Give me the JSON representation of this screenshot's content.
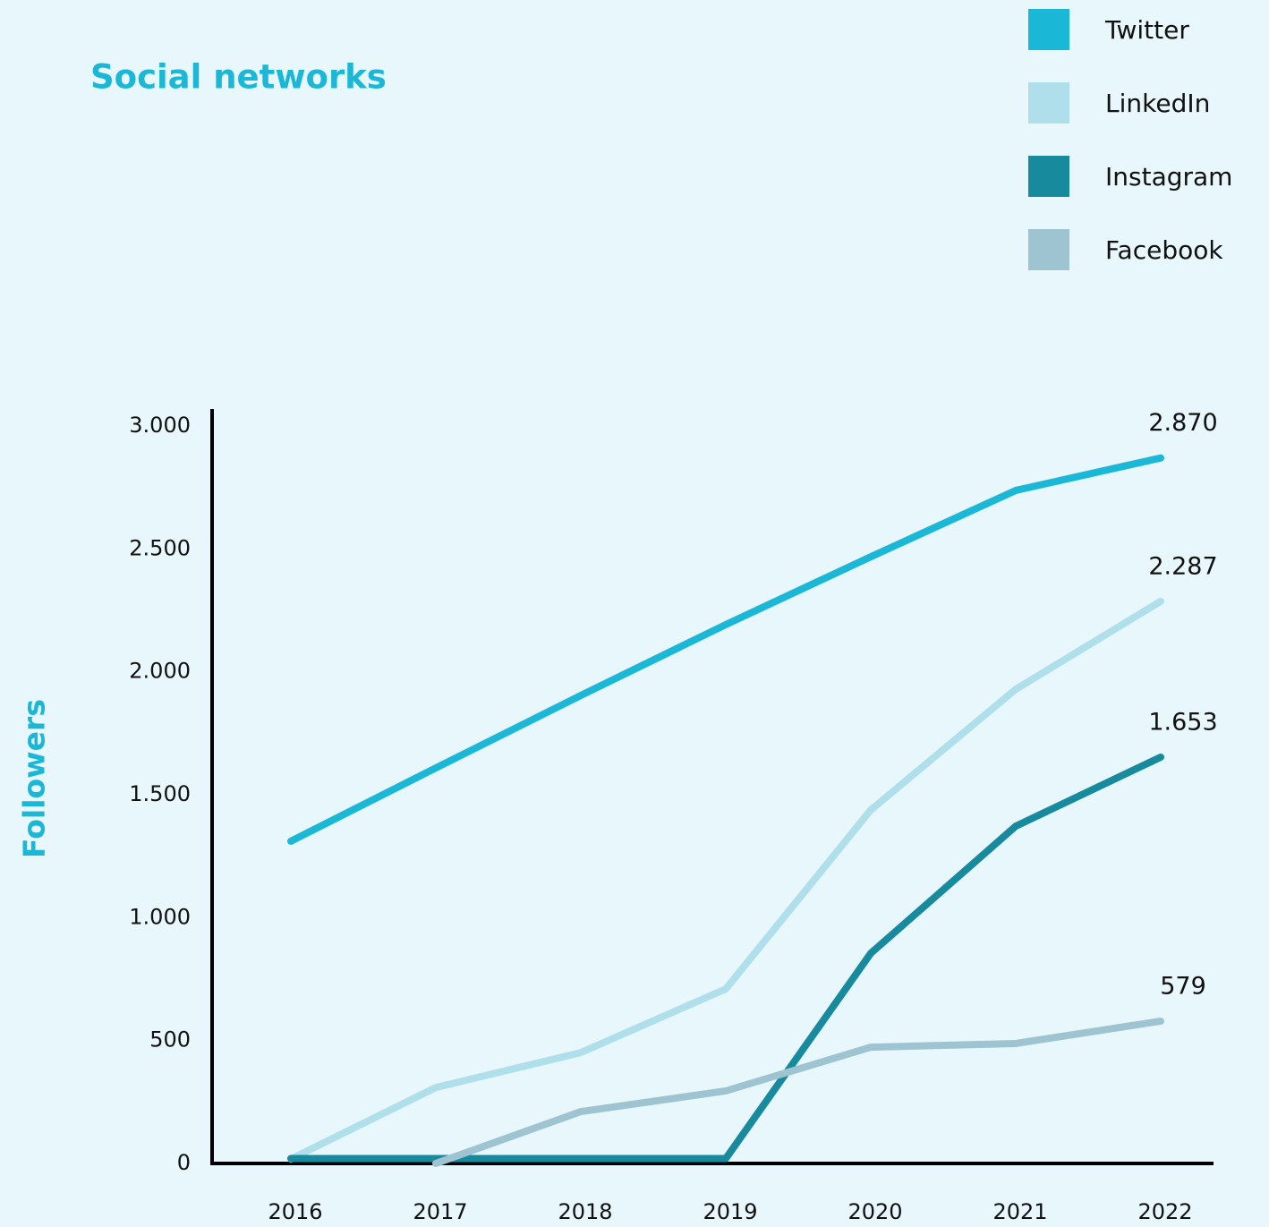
{
  "chart_data": {
    "type": "line",
    "title": "Social networks",
    "y_label": "Followers",
    "categories": [
      "2016",
      "2017",
      "2018",
      "2019",
      "2020",
      "2021",
      "2022"
    ],
    "series": [
      {
        "name": "Twitter",
        "color": "#1ab8d6",
        "values": [
          1311,
          1609,
          1904,
          2192,
          2468,
          2738,
          2870
        ],
        "value_labels": [
          null,
          null,
          null,
          null,
          null,
          null,
          "2.870"
        ]
      },
      {
        "name": "LinkedIn",
        "color": "#b0dfec",
        "values": [
          18,
          309,
          451,
          710,
          1438,
          1929,
          2287
        ],
        "value_labels": [
          null,
          null,
          null,
          null,
          null,
          null,
          "2.287"
        ]
      },
      {
        "name": "Instagram",
        "color": "#178a9e",
        "values": [
          20,
          20,
          20,
          20,
          855,
          1372,
          1653
        ],
        "value_labels": [
          null,
          null,
          null,
          null,
          null,
          null,
          "1.653"
        ]
      },
      {
        "name": "Facebook",
        "color": "#9ec4d1",
        "values": [
          null,
          0,
          211,
          295,
          473,
          488,
          579
        ],
        "value_labels": [
          null,
          null,
          null,
          null,
          null,
          null,
          "579"
        ]
      }
    ],
    "ylim": [
      0,
      3000
    ],
    "yticks": [
      0,
      500,
      {
        "value": 1000,
        "label": "1.000"
      },
      {
        "value": 1500,
        "label": "1.500"
      },
      {
        "value": 2000,
        "label": "2.000"
      },
      {
        "value": 2500,
        "label": "2.500"
      },
      {
        "value": 3000,
        "label": "3.000"
      }
    ],
    "legend": "top-right"
  }
}
